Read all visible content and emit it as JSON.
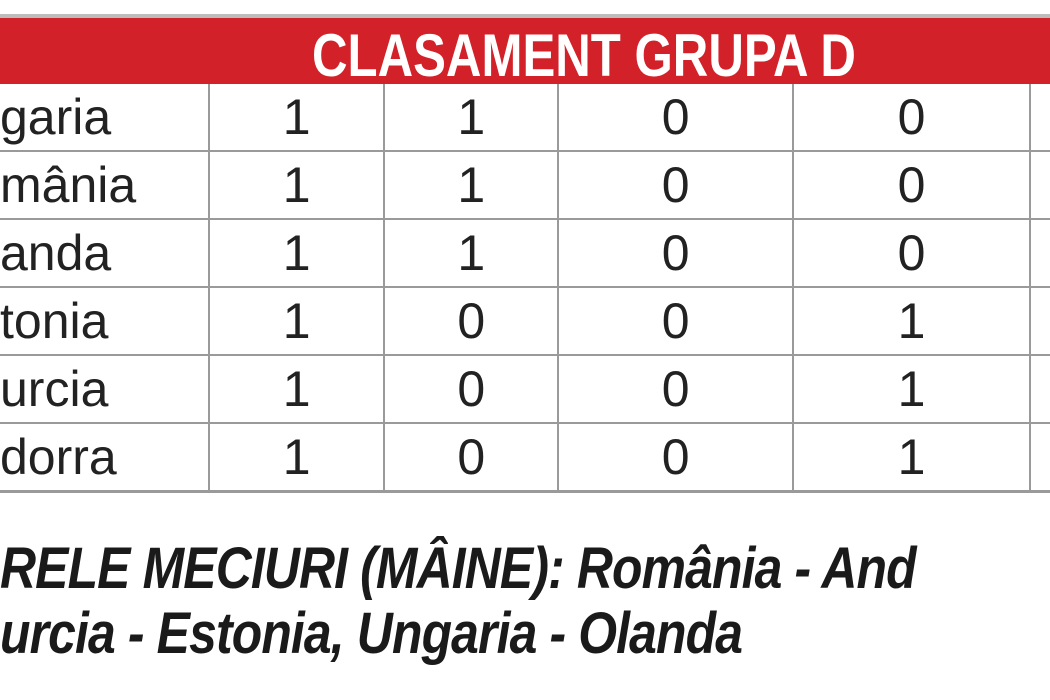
{
  "title": "CLASAMENT GRUPA D",
  "rows": [
    {
      "team": "garia",
      "values": [
        "1",
        "1",
        "0",
        "0"
      ]
    },
    {
      "team": "mânia",
      "values": [
        "1",
        "1",
        "0",
        "0"
      ]
    },
    {
      "team": "anda",
      "values": [
        "1",
        "1",
        "0",
        "0"
      ]
    },
    {
      "team": "tonia",
      "values": [
        "1",
        "0",
        "0",
        "1"
      ]
    },
    {
      "team": "urcia",
      "values": [
        "1",
        "0",
        "0",
        "1"
      ]
    },
    {
      "team": "dorra",
      "values": [
        "1",
        "0",
        "0",
        "1"
      ]
    }
  ],
  "footer": {
    "line1": "RELE MECIURI (MÂINE): România - And",
    "line2": "urcia - Estonia, Ungaria - Olanda"
  },
  "colors": {
    "header_bg": "#d3212a",
    "header_text": "#ffffff"
  }
}
